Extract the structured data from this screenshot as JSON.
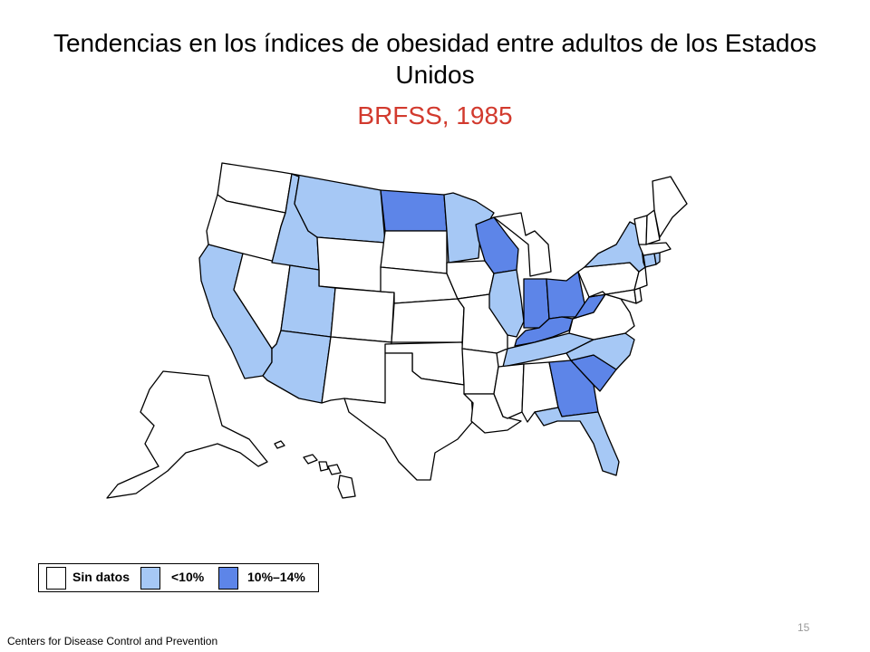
{
  "title": "Tendencias en los índices de obesidad entre adultos de los Estados Unidos",
  "subtitle": "BRFSS, 1985",
  "colors": {
    "no_data": "#ffffff",
    "lt10": "#a6c8f5",
    "10to14": "#5d85e8",
    "subtitle": "#d23a2e"
  },
  "legend": [
    {
      "label": "Sin datos",
      "color": "#ffffff"
    },
    {
      "label": "<10%",
      "color": "#a6c8f5"
    },
    {
      "label": "10%–14%",
      "color": "#5d85e8"
    }
  ],
  "source": "Centers for Disease Control and Prevention",
  "page_number": "15",
  "map_data": {
    "categories": [
      "Sin datos",
      "<10%",
      "10%–14%"
    ],
    "states": {
      "WA": "Sin datos",
      "OR": "Sin datos",
      "CA": "<10%",
      "NV": "Sin datos",
      "ID": "<10%",
      "MT": "<10%",
      "WY": "Sin datos",
      "UT": "<10%",
      "AZ": "<10%",
      "CO": "Sin datos",
      "NM": "Sin datos",
      "ND": "10%–14%",
      "SD": "Sin datos",
      "NE": "Sin datos",
      "KS": "Sin datos",
      "OK": "Sin datos",
      "TX": "Sin datos",
      "MN": "<10%",
      "IA": "Sin datos",
      "MO": "Sin datos",
      "AR": "Sin datos",
      "LA": "Sin datos",
      "WI": "10%–14%",
      "IL": "<10%",
      "MI": "Sin datos",
      "IN": "10%–14%",
      "OH": "10%–14%",
      "KY": "10%–14%",
      "TN": "<10%",
      "MS": "Sin datos",
      "AL": "Sin datos",
      "GA": "10%–14%",
      "FL": "<10%",
      "SC": "10%–14%",
      "NC": "<10%",
      "VA": "Sin datos",
      "WV": "10%–14%",
      "MD": "Sin datos",
      "DE": "Sin datos",
      "PA": "Sin datos",
      "NJ": "Sin datos",
      "NY": "<10%",
      "CT": "<10%",
      "RI": "<10%",
      "MA": "Sin datos",
      "VT": "Sin datos",
      "NH": "Sin datos",
      "ME": "Sin datos",
      "AK": "Sin datos",
      "HI": "Sin datos"
    }
  }
}
